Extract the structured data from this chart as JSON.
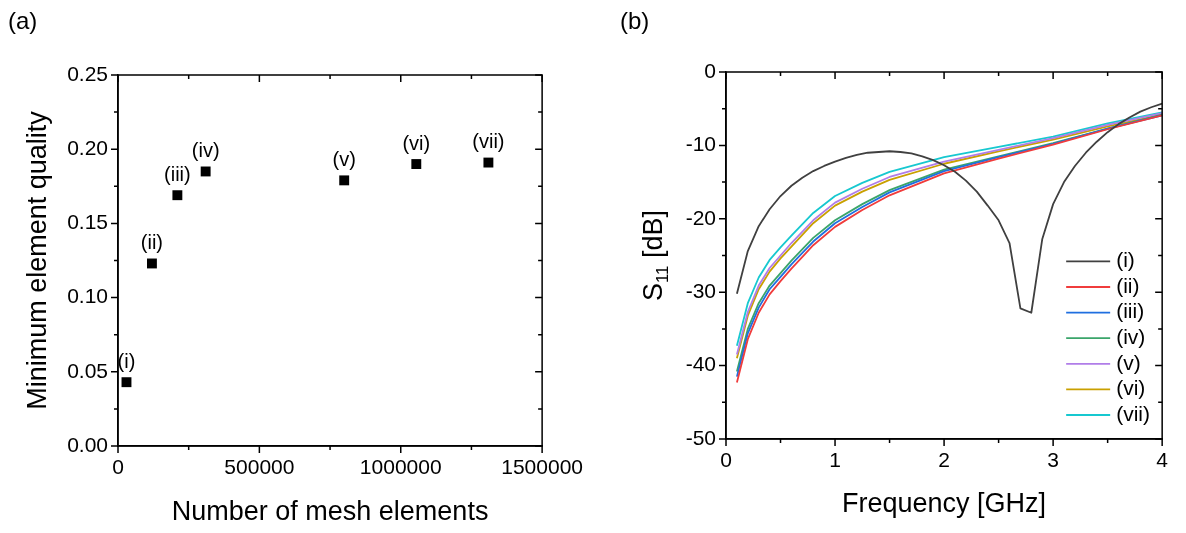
{
  "chart_data": [
    {
      "type": "scatter",
      "title": "(a)",
      "xlabel": "Number of mesh elements",
      "ylabel": "Minimum element quality",
      "marker": "square",
      "x": [
        30000,
        120000,
        210000,
        310000,
        800000,
        1055000,
        1310000
      ],
      "series": [
        {
          "color": "#000000",
          "values": [
            0.043,
            0.123,
            0.169,
            0.185,
            0.179,
            0.19,
            0.191
          ],
          "value_labels": [
            "(i)",
            "(ii)",
            "(iii)",
            "(iv)",
            "(v)",
            "(vi)",
            "(vii)"
          ]
        }
      ],
      "xlim": [
        0,
        1500000
      ],
      "xticks": [
        0,
        {
          "value": 250000,
          "label": null
        },
        500000,
        {
          "value": 750000,
          "label": null
        },
        1000000,
        {
          "value": 1250000,
          "label": null
        },
        1500000
      ],
      "ylim": [
        0,
        0.25
      ],
      "yticks": [
        {
          "value": 0,
          "label": "0.00"
        },
        {
          "value": 0.025,
          "label": null
        },
        {
          "value": 0.05,
          "label": "0.05"
        },
        {
          "value": 0.075,
          "label": null
        },
        {
          "value": 0.1,
          "label": "0.10"
        },
        {
          "value": 0.125,
          "label": null
        },
        {
          "value": 0.15,
          "label": "0.15"
        },
        {
          "value": 0.175,
          "label": null
        },
        {
          "value": 0.2,
          "label": "0.20"
        },
        {
          "value": 0.225,
          "label": null
        },
        {
          "value": 0.25,
          "label": "0.25"
        }
      ]
    },
    {
      "type": "line",
      "title": "(b)",
      "xlabel": "Frequency [GHz]",
      "ylabel": "S$_{11}$ [dB]",
      "legend": "bottom right",
      "series": [
        {
          "name": "(i)",
          "color": "#404040",
          "x": [
            0.1,
            0.2,
            0.3,
            0.4,
            0.5,
            0.6,
            0.7,
            0.8,
            0.9,
            1.0,
            1.1,
            1.2,
            1.3,
            1.4,
            1.5,
            1.6,
            1.7,
            1.8,
            1.9,
            2.0,
            2.1,
            2.2,
            2.3,
            2.4,
            2.5,
            2.6,
            2.7,
            2.8,
            2.9,
            3.0,
            3.1,
            3.2,
            3.3,
            3.4,
            3.5,
            3.6,
            3.7,
            3.8,
            3.9,
            4.0
          ],
          "values": [
            -30.2,
            -24.4,
            -21.0,
            -18.7,
            -16.9,
            -15.5,
            -14.4,
            -13.5,
            -12.8,
            -12.2,
            -11.7,
            -11.3,
            -11.0,
            -10.9,
            -10.8,
            -10.9,
            -11.1,
            -11.5,
            -12.0,
            -12.7,
            -13.6,
            -14.8,
            -16.3,
            -18.2,
            -20.2,
            -23.3,
            -32.2,
            -32.8,
            -22.8,
            -18.0,
            -15.0,
            -12.8,
            -11.0,
            -9.5,
            -8.2,
            -7.1,
            -6.2,
            -5.4,
            -4.8,
            -4.3
          ]
        },
        {
          "name": "(ii)",
          "color": "#f03c3c",
          "x": [
            0.1,
            0.2,
            0.3,
            0.4,
            0.5,
            0.6,
            0.8,
            1.0,
            1.25,
            1.5,
            2.0,
            2.5,
            3.0,
            3.5,
            4.0
          ],
          "values": [
            -42.3,
            -36.4,
            -32.8,
            -30.3,
            -28.5,
            -26.8,
            -23.6,
            -21.1,
            -18.8,
            -16.8,
            -13.8,
            -11.8,
            -9.9,
            -7.8,
            -5.9
          ]
        },
        {
          "name": "(iii)",
          "color": "#1f6fe0",
          "x": [
            0.1,
            0.2,
            0.3,
            0.4,
            0.5,
            0.6,
            0.8,
            1.0,
            1.25,
            1.5,
            2.0,
            2.5,
            3.0,
            3.5,
            4.0
          ],
          "values": [
            -41.5,
            -35.6,
            -32.1,
            -29.6,
            -27.9,
            -26.2,
            -23.1,
            -20.6,
            -18.4,
            -16.4,
            -13.5,
            -11.6,
            -9.8,
            -7.7,
            -5.9
          ]
        },
        {
          "name": "(iv)",
          "color": "#3aa56a",
          "x": [
            0.1,
            0.2,
            0.3,
            0.4,
            0.5,
            0.6,
            0.8,
            1.0,
            1.25,
            1.5,
            2.0,
            2.5,
            3.0,
            3.5,
            4.0
          ],
          "values": [
            -40.8,
            -35.0,
            -31.5,
            -29.1,
            -27.4,
            -25.7,
            -22.6,
            -20.2,
            -18.0,
            -16.1,
            -13.3,
            -11.5,
            -9.7,
            -7.7,
            -5.8
          ]
        },
        {
          "name": "(v)",
          "color": "#b07de8",
          "x": [
            0.1,
            0.2,
            0.3,
            0.4,
            0.5,
            0.6,
            0.8,
            1.0,
            1.25,
            1.5,
            2.0,
            2.5,
            3.0,
            3.5,
            4.0
          ],
          "values": [
            -38.5,
            -32.7,
            -29.1,
            -26.7,
            -25.0,
            -23.3,
            -20.2,
            -17.8,
            -15.9,
            -14.3,
            -12.2,
            -10.6,
            -9.0,
            -7.2,
            -5.6
          ]
        },
        {
          "name": "(vi)",
          "color": "#c9a000",
          "x": [
            0.1,
            0.2,
            0.3,
            0.4,
            0.5,
            0.6,
            0.8,
            1.0,
            1.25,
            1.5,
            2.0,
            2.5,
            3.0,
            3.5,
            4.0
          ],
          "values": [
            -39.0,
            -33.2,
            -29.6,
            -27.2,
            -25.4,
            -23.8,
            -20.6,
            -18.2,
            -16.3,
            -14.7,
            -12.5,
            -10.8,
            -9.2,
            -7.4,
            -5.8
          ]
        },
        {
          "name": "(vii)",
          "color": "#17c8d0",
          "x": [
            0.1,
            0.2,
            0.3,
            0.4,
            0.5,
            0.6,
            0.8,
            1.0,
            1.25,
            1.5,
            2.0,
            2.5,
            3.0,
            3.5,
            4.0
          ],
          "values": [
            -37.3,
            -31.5,
            -28.0,
            -25.6,
            -23.9,
            -22.3,
            -19.2,
            -16.9,
            -15.1,
            -13.6,
            -11.6,
            -10.2,
            -8.8,
            -7.0,
            -5.5
          ]
        }
      ],
      "xlim": [
        0,
        4
      ],
      "xticks": [
        0,
        {
          "value": 0.5,
          "label": null
        },
        1,
        {
          "value": 1.5,
          "label": null
        },
        2,
        {
          "value": 2.5,
          "label": null
        },
        3,
        {
          "value": 3.5,
          "label": null
        },
        4
      ],
      "ylim": [
        -50,
        0
      ],
      "yticks": [
        -50,
        {
          "value": -45,
          "label": null
        },
        -40,
        {
          "value": -35,
          "label": null
        },
        -30,
        {
          "value": -25,
          "label": null
        },
        -20,
        {
          "value": -15,
          "label": null
        },
        -10,
        {
          "value": -5,
          "label": null
        },
        0
      ]
    }
  ]
}
